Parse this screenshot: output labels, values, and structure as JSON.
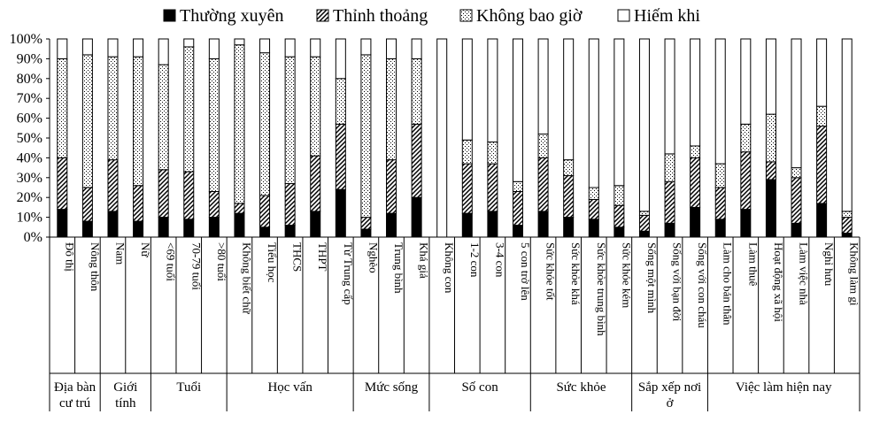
{
  "chart_data": {
    "type": "bar",
    "stacked": "percent",
    "orientation": "vertical",
    "ylim": [
      0,
      100
    ],
    "yticks": [
      "0%",
      "10%",
      "20%",
      "30%",
      "40%",
      "50%",
      "60%",
      "70%",
      "80%",
      "90%",
      "100%"
    ],
    "grid": false,
    "legend_position": "top",
    "series": [
      {
        "name": "Thường xuyên",
        "pattern": "solid-black",
        "values": [
          14,
          8,
          13,
          8,
          10,
          9,
          10,
          12,
          5,
          6,
          13,
          24,
          4,
          12,
          20,
          0,
          12,
          13,
          6,
          13,
          10,
          9,
          5,
          3,
          7,
          15,
          9,
          14,
          29,
          7,
          17,
          2
        ]
      },
      {
        "name": "Thỉnh thoảng",
        "pattern": "diagonal-hatch",
        "values": [
          26,
          17,
          26,
          18,
          24,
          24,
          13,
          5,
          16,
          21,
          28,
          33,
          6,
          27,
          37,
          0,
          25,
          24,
          17,
          27,
          21,
          10,
          11,
          8,
          21,
          25,
          16,
          29,
          9,
          23,
          39,
          8
        ]
      },
      {
        "name": "Không bao giờ",
        "pattern": "dotted",
        "values": [
          50,
          67,
          52,
          65,
          53,
          63,
          67,
          80,
          72,
          64,
          50,
          23,
          82,
          51,
          33,
          0,
          12,
          11,
          5,
          12,
          8,
          6,
          10,
          2,
          14,
          6,
          12,
          14,
          24,
          5,
          10,
          3
        ]
      },
      {
        "name": "Hiếm khi",
        "pattern": "white",
        "values": [
          10,
          8,
          9,
          9,
          13,
          4,
          10,
          3,
          7,
          9,
          9,
          20,
          8,
          10,
          10,
          100,
          51,
          52,
          72,
          48,
          61,
          75,
          74,
          87,
          58,
          54,
          63,
          43,
          38,
          65,
          34,
          87
        ]
      }
    ],
    "categories": [
      "Đô thị",
      "Nông thôn",
      "Nam",
      "Nữ",
      "<69 tuổi",
      "70-79 tuổi",
      ">80 tuổi",
      "Không biết chữ",
      "Tiểu học",
      "THCS",
      "THPT",
      "Từ Trung cấp",
      "Nghèo",
      "Trung bình",
      "Khá giả",
      "Không con",
      "1-2 con",
      "3-4 con",
      "5 con trở lên",
      "Sức khỏe tốt",
      "Sức khỏe khá",
      "Sức khỏe trung bình",
      "Sức khỏe kém",
      "Sống một mình",
      "Sống với bạn đời",
      "Sống với con cháu",
      "Làm cho bản thân",
      "Làm thuê",
      "Hoạt động xã hội",
      "Làm việc nhà",
      "Nghỉ hưu",
      "Không làm gì"
    ],
    "groups": [
      {
        "label_lines": [
          "Địa bàn",
          "cư trú"
        ],
        "start": 0,
        "count": 2
      },
      {
        "label_lines": [
          "Giới",
          "tính"
        ],
        "start": 2,
        "count": 2
      },
      {
        "label_lines": [
          "Tuổi"
        ],
        "start": 4,
        "count": 3
      },
      {
        "label_lines": [
          "Học vấn"
        ],
        "start": 7,
        "count": 5
      },
      {
        "label_lines": [
          "Mức sống"
        ],
        "start": 12,
        "count": 3
      },
      {
        "label_lines": [
          "Số con"
        ],
        "start": 15,
        "count": 4
      },
      {
        "label_lines": [
          "Sức khỏe"
        ],
        "start": 19,
        "count": 4
      },
      {
        "label_lines": [
          "Sắp xếp nơi",
          "ở"
        ],
        "start": 23,
        "count": 3
      },
      {
        "label_lines": [
          "Việc làm hiện nay"
        ],
        "start": 26,
        "count": 6
      }
    ]
  }
}
